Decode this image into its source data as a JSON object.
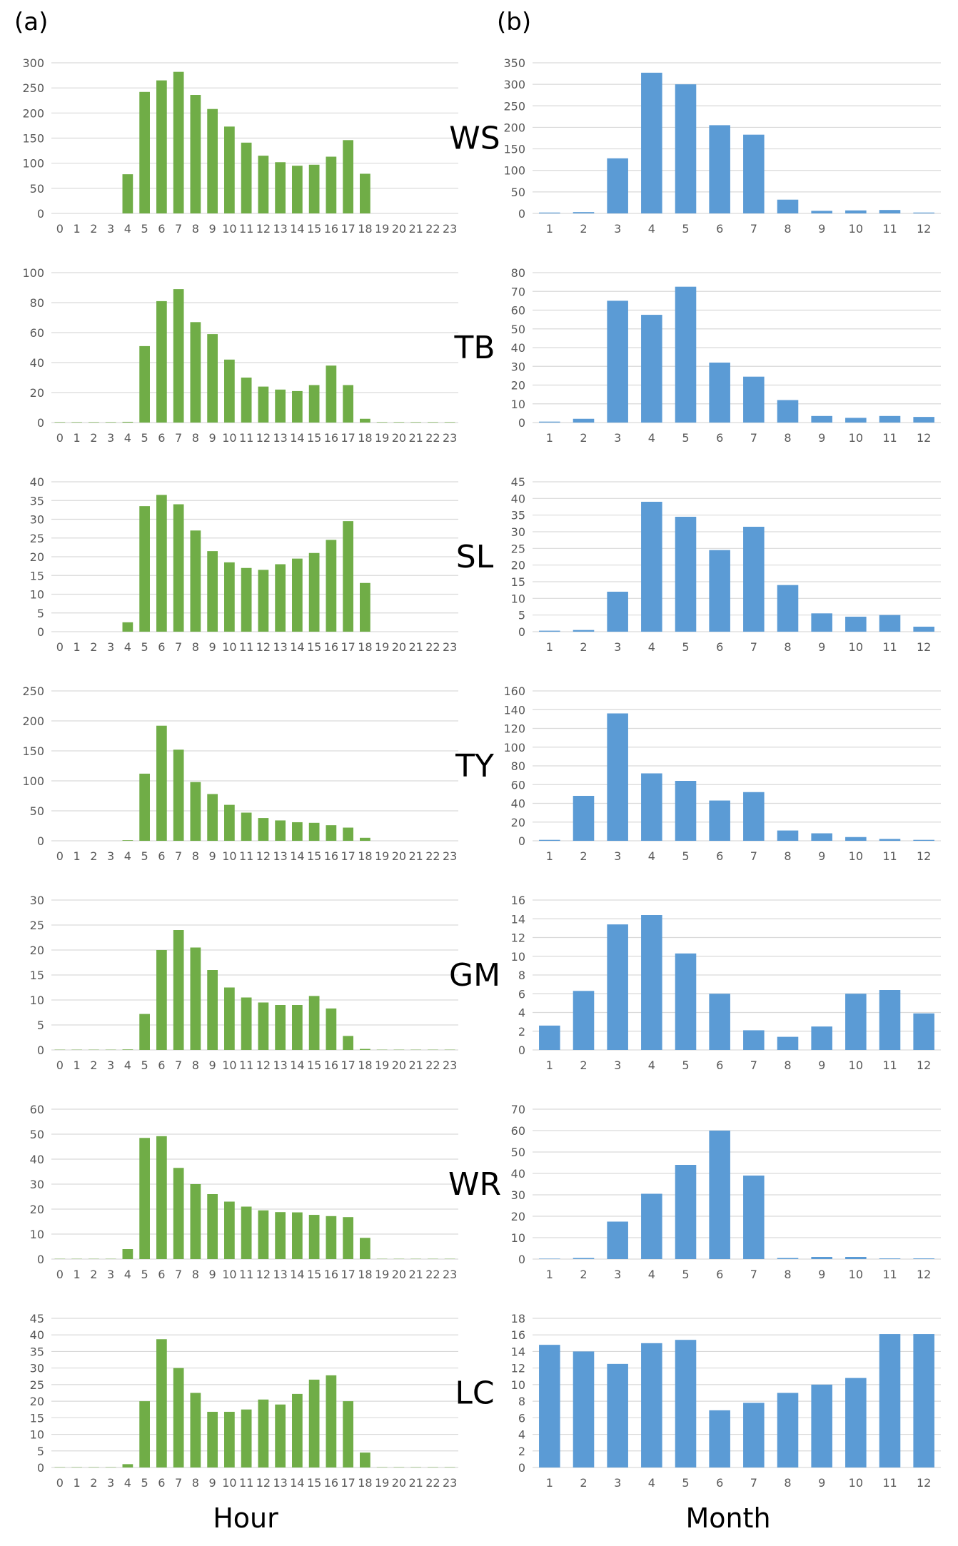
{
  "panel_labels": {
    "a": "(a)",
    "b": "(b)"
  },
  "axis_titles": {
    "left": "Hour",
    "right": "Month"
  },
  "colors": {
    "hour_bars": "#70ad47",
    "month_bars": "#5b9bd5",
    "grid": "#d9d9d9",
    "axis_text": "#595959"
  },
  "chart_data": [
    {
      "id": "WS-hour",
      "type": "bar",
      "station": "WS",
      "panel": "a",
      "categories": [
        "0",
        "1",
        "2",
        "3",
        "4",
        "5",
        "6",
        "7",
        "8",
        "9",
        "10",
        "11",
        "12",
        "13",
        "14",
        "15",
        "16",
        "17",
        "18",
        "19",
        "20",
        "21",
        "22",
        "23"
      ],
      "values": [
        0,
        0,
        0,
        0,
        78,
        242,
        265,
        282,
        236,
        208,
        173,
        141,
        115,
        102,
        95,
        97,
        113,
        146,
        79,
        0,
        0,
        0,
        0,
        0
      ],
      "yticks": [
        0,
        50,
        100,
        150,
        200,
        250,
        300
      ],
      "ylim": [
        0,
        300
      ],
      "grid": true
    },
    {
      "id": "WS-month",
      "type": "bar",
      "station": "WS",
      "panel": "b",
      "categories": [
        "1",
        "2",
        "3",
        "4",
        "5",
        "6",
        "7",
        "8",
        "9",
        "10",
        "11",
        "12"
      ],
      "values": [
        2,
        3,
        128,
        327,
        300,
        205,
        183,
        32,
        6,
        7,
        8,
        2
      ],
      "yticks": [
        0,
        50,
        100,
        150,
        200,
        250,
        300,
        350
      ],
      "ylim": [
        0,
        350
      ],
      "grid": true
    },
    {
      "id": "TB-hour",
      "type": "bar",
      "station": "TB",
      "panel": "a",
      "categories": [
        "0",
        "1",
        "2",
        "3",
        "4",
        "5",
        "6",
        "7",
        "8",
        "9",
        "10",
        "11",
        "12",
        "13",
        "14",
        "15",
        "16",
        "17",
        "18",
        "19",
        "20",
        "21",
        "22",
        "23"
      ],
      "values": [
        0.3,
        0.3,
        0.3,
        0.3,
        0.5,
        51,
        81,
        89,
        67,
        59,
        42,
        30,
        24,
        22,
        21,
        25,
        38,
        25,
        2.5,
        0.3,
        0.3,
        0.3,
        0.3,
        0.3
      ],
      "yticks": [
        0,
        20,
        40,
        60,
        80,
        100
      ],
      "ylim": [
        0,
        100
      ],
      "grid": true
    },
    {
      "id": "TB-month",
      "type": "bar",
      "station": "TB",
      "panel": "b",
      "categories": [
        "1",
        "2",
        "3",
        "4",
        "5",
        "6",
        "7",
        "8",
        "9",
        "10",
        "11",
        "12"
      ],
      "values": [
        0.5,
        2,
        65,
        57.5,
        72.5,
        32,
        24.5,
        12,
        3.5,
        2.5,
        3.5,
        3
      ],
      "yticks": [
        0,
        10,
        20,
        30,
        40,
        50,
        60,
        70,
        80
      ],
      "ylim": [
        0,
        80
      ],
      "grid": true
    },
    {
      "id": "SL-hour",
      "type": "bar",
      "station": "SL",
      "panel": "a",
      "categories": [
        "0",
        "1",
        "2",
        "3",
        "4",
        "5",
        "6",
        "7",
        "8",
        "9",
        "10",
        "11",
        "12",
        "13",
        "14",
        "15",
        "16",
        "17",
        "18",
        "19",
        "20",
        "21",
        "22",
        "23"
      ],
      "values": [
        0,
        0,
        0,
        0,
        2.5,
        33.5,
        36.5,
        34,
        27,
        21.5,
        18.5,
        17,
        16.5,
        18,
        19.5,
        21,
        24.5,
        29.5,
        13,
        0,
        0,
        0,
        0,
        0
      ],
      "yticks": [
        0,
        5,
        10,
        15,
        20,
        25,
        30,
        35,
        40
      ],
      "ylim": [
        0,
        40
      ],
      "grid": true
    },
    {
      "id": "SL-month",
      "type": "bar",
      "station": "SL",
      "panel": "b",
      "categories": [
        "1",
        "2",
        "3",
        "4",
        "5",
        "6",
        "7",
        "8",
        "9",
        "10",
        "11",
        "12"
      ],
      "values": [
        0.3,
        0.5,
        12,
        39,
        34.5,
        24.5,
        31.5,
        14,
        5.5,
        4.5,
        5,
        1.5
      ],
      "yticks": [
        0,
        5,
        10,
        15,
        20,
        25,
        30,
        35,
        40,
        45
      ],
      "ylim": [
        0,
        45
      ],
      "grid": true
    },
    {
      "id": "TY-hour",
      "type": "bar",
      "station": "TY",
      "panel": "a",
      "categories": [
        "0",
        "1",
        "2",
        "3",
        "4",
        "5",
        "6",
        "7",
        "8",
        "9",
        "10",
        "11",
        "12",
        "13",
        "14",
        "15",
        "16",
        "17",
        "18",
        "19",
        "20",
        "21",
        "22",
        "23"
      ],
      "values": [
        0,
        0,
        0,
        0,
        1,
        112,
        192,
        152,
        98,
        78,
        60,
        47,
        38,
        34,
        31,
        30,
        26,
        22,
        5,
        0,
        0,
        0,
        0,
        0
      ],
      "yticks": [
        0,
        50,
        100,
        150,
        200,
        250
      ],
      "ylim": [
        0,
        250
      ],
      "grid": true
    },
    {
      "id": "TY-month",
      "type": "bar",
      "station": "TY",
      "panel": "b",
      "categories": [
        "1",
        "2",
        "3",
        "4",
        "5",
        "6",
        "7",
        "8",
        "9",
        "10",
        "11",
        "12"
      ],
      "values": [
        1,
        48,
        136,
        72,
        64,
        43,
        52,
        11,
        8,
        4,
        2,
        1
      ],
      "yticks": [
        0,
        20,
        40,
        60,
        80,
        100,
        120,
        140,
        160
      ],
      "ylim": [
        0,
        160
      ],
      "grid": true
    },
    {
      "id": "GM-hour",
      "type": "bar",
      "station": "GM",
      "panel": "a",
      "categories": [
        "0",
        "1",
        "2",
        "3",
        "4",
        "5",
        "6",
        "7",
        "8",
        "9",
        "10",
        "11",
        "12",
        "13",
        "14",
        "15",
        "16",
        "17",
        "18",
        "19",
        "20",
        "21",
        "22",
        "23"
      ],
      "values": [
        0.05,
        0.05,
        0.05,
        0.05,
        0.1,
        7.2,
        20,
        24,
        20.5,
        16,
        12.5,
        10.5,
        9.5,
        9,
        9,
        10.8,
        8.3,
        2.8,
        0.2,
        0.05,
        0.05,
        0.05,
        0.05,
        0.05
      ],
      "yticks": [
        0,
        5,
        10,
        15,
        20,
        25,
        30
      ],
      "ylim": [
        0,
        30
      ],
      "grid": true
    },
    {
      "id": "GM-month",
      "type": "bar",
      "station": "GM",
      "panel": "b",
      "categories": [
        "1",
        "2",
        "3",
        "4",
        "5",
        "6",
        "7",
        "8",
        "9",
        "10",
        "11",
        "12"
      ],
      "values": [
        2.6,
        6.3,
        13.4,
        14.4,
        10.3,
        6,
        2.1,
        1.4,
        2.5,
        6,
        6.4,
        3.9
      ],
      "yticks": [
        0,
        2,
        4,
        6,
        8,
        10,
        12,
        14,
        16
      ],
      "ylim": [
        0,
        16
      ],
      "grid": true
    },
    {
      "id": "WR-hour",
      "type": "bar",
      "station": "WR",
      "panel": "a",
      "categories": [
        "0",
        "1",
        "2",
        "3",
        "4",
        "5",
        "6",
        "7",
        "8",
        "9",
        "10",
        "11",
        "12",
        "13",
        "14",
        "15",
        "16",
        "17",
        "18",
        "19",
        "20",
        "21",
        "22",
        "23"
      ],
      "values": [
        0.1,
        0.1,
        0.1,
        0.1,
        4,
        48.5,
        49.2,
        36.5,
        30,
        26,
        23,
        21,
        19.5,
        18.8,
        18.7,
        17.7,
        17.2,
        16.8,
        8.5,
        0.1,
        0.1,
        0.1,
        0.1,
        0.1
      ],
      "yticks": [
        0,
        10,
        20,
        30,
        40,
        50,
        60
      ],
      "ylim": [
        0,
        60
      ],
      "grid": true
    },
    {
      "id": "WR-month",
      "type": "bar",
      "station": "WR",
      "panel": "b",
      "categories": [
        "1",
        "2",
        "3",
        "4",
        "5",
        "6",
        "7",
        "8",
        "9",
        "10",
        "11",
        "12"
      ],
      "values": [
        0.2,
        0.5,
        17.5,
        30.5,
        44,
        60,
        39,
        0.5,
        1,
        1,
        0.3,
        0.3
      ],
      "yticks": [
        0,
        10,
        20,
        30,
        40,
        50,
        60,
        70
      ],
      "ylim": [
        0,
        70
      ],
      "grid": true
    },
    {
      "id": "LC-hour",
      "type": "bar",
      "station": "LC",
      "panel": "a",
      "categories": [
        "0",
        "1",
        "2",
        "3",
        "4",
        "5",
        "6",
        "7",
        "8",
        "9",
        "10",
        "11",
        "12",
        "13",
        "14",
        "15",
        "16",
        "17",
        "18",
        "19",
        "20",
        "21",
        "22",
        "23"
      ],
      "values": [
        0.1,
        0.1,
        0.1,
        0.1,
        1,
        20,
        38.7,
        30,
        22.5,
        16.8,
        16.8,
        17.5,
        20.5,
        19,
        22.2,
        26.5,
        27.8,
        20,
        4.5,
        0.1,
        0.1,
        0.1,
        0.1,
        0.1
      ],
      "yticks": [
        0,
        5,
        10,
        15,
        20,
        25,
        30,
        35,
        40,
        45
      ],
      "ylim": [
        0,
        45
      ],
      "grid": true
    },
    {
      "id": "LC-month",
      "type": "bar",
      "station": "LC",
      "panel": "b",
      "categories": [
        "1",
        "2",
        "3",
        "4",
        "5",
        "6",
        "7",
        "8",
        "9",
        "10",
        "11",
        "12"
      ],
      "values": [
        14.8,
        14,
        12.5,
        15,
        15.4,
        6.9,
        7.8,
        9,
        10,
        10.8,
        16.1,
        16.1
      ],
      "yticks": [
        0,
        2,
        4,
        6,
        8,
        10,
        12,
        14,
        16,
        18
      ],
      "ylim": [
        0,
        18
      ],
      "grid": true
    }
  ]
}
